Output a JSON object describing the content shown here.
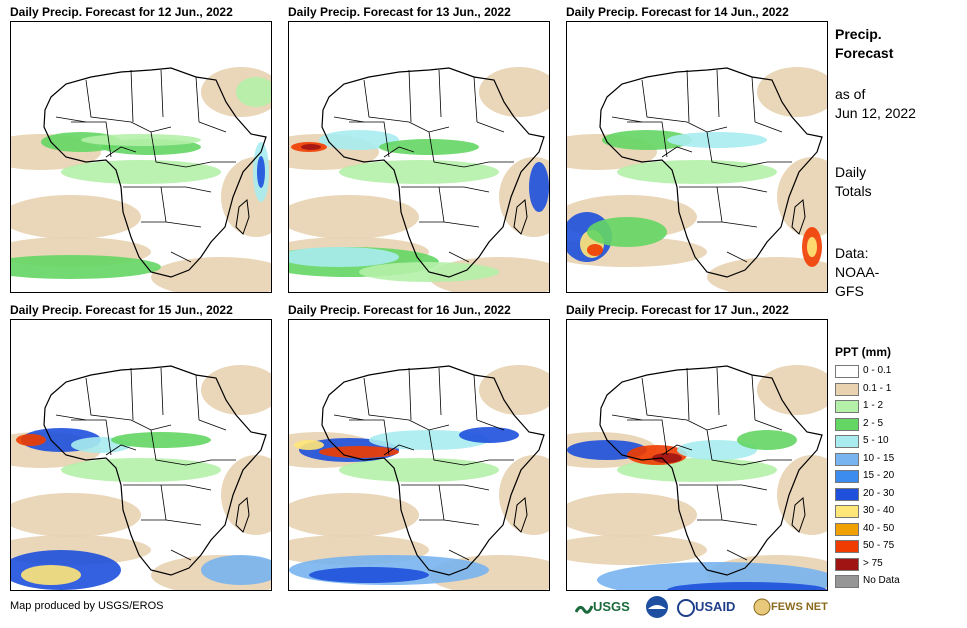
{
  "panels": [
    {
      "title": "Daily Precip. Forecast for 12 Jun., 2022",
      "variant": 0
    },
    {
      "title": "Daily Precip. Forecast for 13 Jun., 2022",
      "variant": 1
    },
    {
      "title": "Daily Precip. Forecast for 14 Jun., 2022",
      "variant": 2
    },
    {
      "title": "Daily Precip. Forecast for 15 Jun., 2022",
      "variant": 3
    },
    {
      "title": "Daily Precip. Forecast for 16 Jun., 2022",
      "variant": 4
    },
    {
      "title": "Daily Precip. Forecast for 17 Jun., 2022",
      "variant": 5
    }
  ],
  "sidebar": {
    "heading_line1": "Precip.",
    "heading_line2": "Forecast",
    "asof_line1": "as of",
    "asof_line2": "Jun 12, 2022",
    "totals_line1": "Daily",
    "totals_line2": "Totals",
    "data_line1": "Data:",
    "data_line2": "NOAA-",
    "data_line3": "GFS"
  },
  "legend": {
    "title": "PPT (mm)",
    "items": [
      {
        "label": "0 - 0.1",
        "color": "#ffffff"
      },
      {
        "label": "0.1 - 1",
        "color": "#e8d2b0"
      },
      {
        "label": "1 - 2",
        "color": "#b4f0a8"
      },
      {
        "label": "2 - 5",
        "color": "#64d664"
      },
      {
        "label": "5 - 10",
        "color": "#a8ecf0"
      },
      {
        "label": "10 - 15",
        "color": "#78b4f0"
      },
      {
        "label": "15 - 20",
        "color": "#3c8cf0"
      },
      {
        "label": "20 - 30",
        "color": "#1e50dc"
      },
      {
        "label": "30 - 40",
        "color": "#ffe678"
      },
      {
        "label": "40 - 50",
        "color": "#f0a000"
      },
      {
        "label": "50 - 75",
        "color": "#f03c00"
      },
      {
        "label": "> 75",
        "color": "#a01414"
      },
      {
        "label": "No Data",
        "color": "#969696"
      }
    ]
  },
  "footer": {
    "credit": "Map produced by USGS/EROS",
    "logos": [
      {
        "name": "usgs-logo",
        "text": "USGS",
        "color": "#1c6a3c"
      },
      {
        "name": "noaa-logo",
        "text": "",
        "color": "#1f4fa0"
      },
      {
        "name": "usaid-logo",
        "text": "USAID",
        "color": "#1f3f8a"
      },
      {
        "name": "fews-net-logo",
        "text": "FEWS NET",
        "color": "#8a6a1c"
      }
    ]
  }
}
